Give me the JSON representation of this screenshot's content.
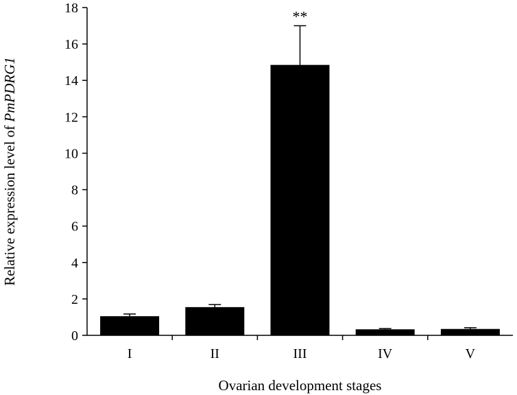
{
  "chart_data": {
    "type": "bar",
    "categories": [
      "I",
      "II",
      "III",
      "IV",
      "V"
    ],
    "values": [
      1.05,
      1.55,
      14.85,
      0.33,
      0.35
    ],
    "errors": [
      0.12,
      0.14,
      2.15,
      0.04,
      0.07
    ],
    "annotations": [
      {
        "category": "III",
        "text": "**"
      }
    ],
    "xlabel": "Ovarian development stages",
    "ylabel_prefix": "Relative expression level of ",
    "ylabel_gene": "PmPDRG1",
    "ylim": [
      0,
      18
    ],
    "yticks": [
      0,
      2,
      4,
      6,
      8,
      10,
      12,
      14,
      16,
      18
    ],
    "grid": false,
    "legend": "none",
    "bar_color": "#000000"
  }
}
